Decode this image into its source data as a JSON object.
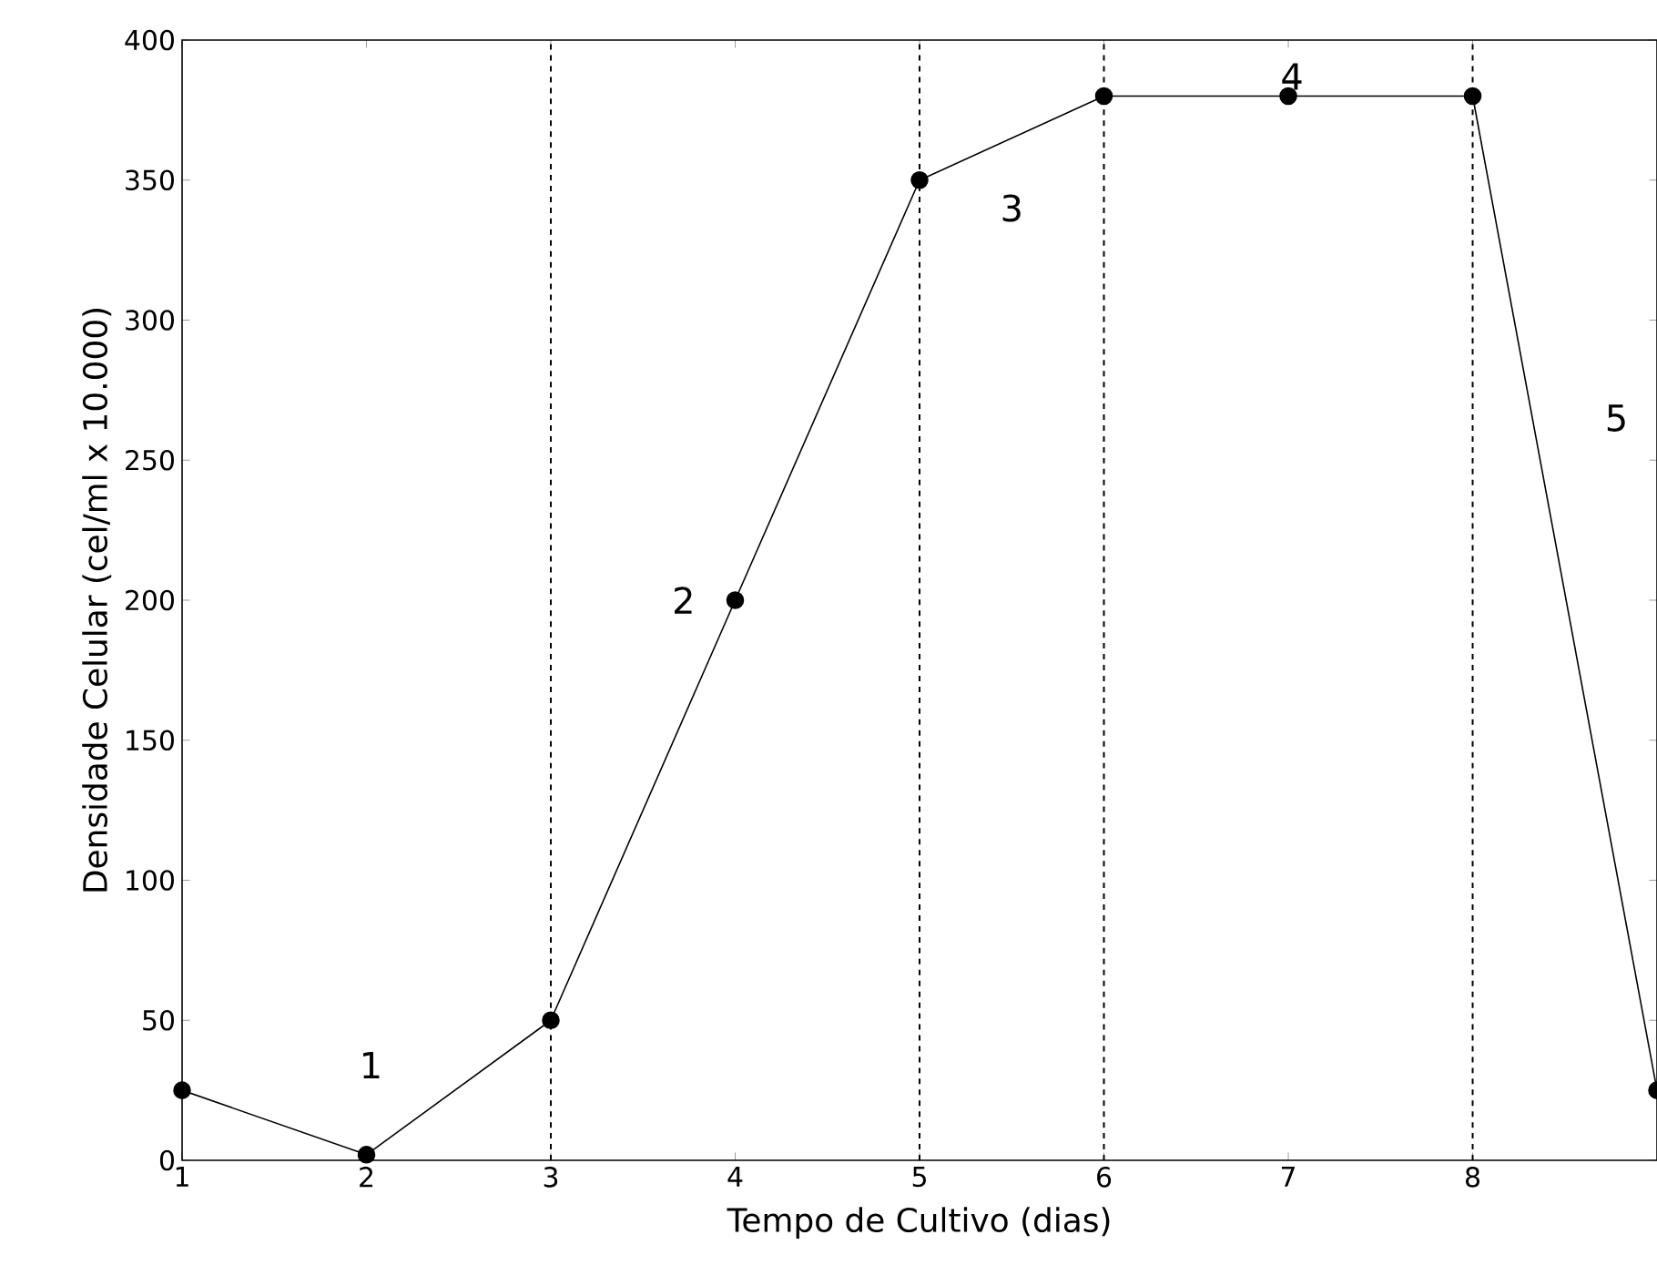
{
  "chart_data": {
    "type": "line",
    "xlabel": "Tempo de Cultivo (dias)",
    "ylabel": "Densidade Celular (cel/ml x 10.000)",
    "x": [
      1,
      2,
      3,
      4,
      5,
      6,
      7,
      8,
      9
    ],
    "series": [
      {
        "color": "#000000",
        "values": [
          25,
          2,
          50,
          200,
          350,
          380,
          380,
          380,
          25
        ]
      }
    ],
    "marker": "circle",
    "line_style": "solid",
    "grid": false,
    "xlim": [
      1,
      9
    ],
    "ylim": [
      0,
      400
    ],
    "xticks": [
      1,
      2,
      3,
      4,
      5,
      6,
      7,
      8
    ],
    "yticks": [
      0,
      50,
      100,
      150,
      200,
      250,
      300,
      350,
      400
    ],
    "ref_lines": [
      {
        "axis": "x",
        "value": 3,
        "line_style": "dashed",
        "color": "#000000"
      },
      {
        "axis": "x",
        "value": 5,
        "line_style": "dashed",
        "color": "#000000"
      },
      {
        "axis": "x",
        "value": 6,
        "line_style": "dashed",
        "color": "#000000"
      },
      {
        "axis": "x",
        "value": 8,
        "line_style": "dashed",
        "color": "#000000"
      }
    ],
    "annotations": [
      "1",
      "2",
      "3",
      "4",
      "5"
    ]
  }
}
